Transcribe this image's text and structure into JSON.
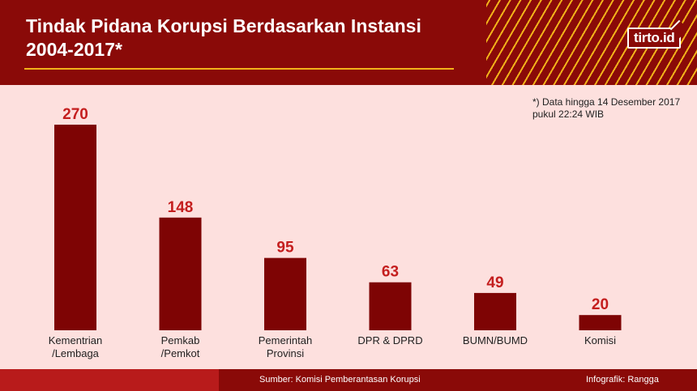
{
  "header": {
    "title_line1": "Tindak Pidana Korupsi Berdasarkan Instansi",
    "title_line2": "2004-2017*",
    "logo_text": "tirto.id"
  },
  "note": {
    "line1": "*) Data hingga 14 Desember 2017",
    "line2": "pukul 22:24 WIB"
  },
  "footer": {
    "source": "Sumber: Komisi Pemberantasan Korupsi",
    "credit": "Infografik: Rangga"
  },
  "colors": {
    "header_bg": "#8a0a08",
    "accent": "#f2b21a",
    "page_bg": "#fde0de",
    "bar": "#7e0404",
    "value_label": "#c41e1e",
    "footer_red": "#b81b1b"
  },
  "chart_data": {
    "type": "bar",
    "categories": [
      [
        "Kementrian",
        "/Lembaga"
      ],
      [
        "Pemkab",
        "/Pemkot"
      ],
      [
        "Pemerintah",
        "Provinsi"
      ],
      [
        "DPR & DPRD"
      ],
      [
        "BUMN/BUMD"
      ],
      [
        "Komisi"
      ]
    ],
    "values": [
      270,
      148,
      95,
      63,
      49,
      20
    ],
    "title": "Tindak Pidana Korupsi Berdasarkan Instansi 2004-2017*",
    "xlabel": "",
    "ylabel": "",
    "ylim": [
      0,
      270
    ],
    "grid": false,
    "legend": "none"
  }
}
